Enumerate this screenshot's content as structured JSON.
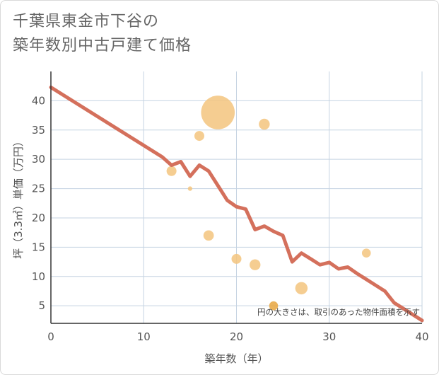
{
  "title_lines": [
    "千葉県東金市下谷の",
    "築年数別中古戸建て価格"
  ],
  "chart_data": {
    "type": "scatter",
    "xlabel": "築年数（年）",
    "ylabel": "坪（3.3㎡）単価（万円）",
    "xlim": [
      0,
      40
    ],
    "ylim": [
      2,
      45
    ],
    "x_ticks": [
      0,
      10,
      20,
      30,
      40
    ],
    "y_ticks": [
      5,
      10,
      15,
      20,
      25,
      30,
      35,
      40
    ],
    "grid": true,
    "note": "円の大きさは、取引のあった物件面積を示す",
    "points": [
      {
        "x": 13,
        "y": 28,
        "size": 1.0
      },
      {
        "x": 15,
        "y": 25,
        "size": 0.45
      },
      {
        "x": 16,
        "y": 34,
        "size": 1.0
      },
      {
        "x": 17,
        "y": 17,
        "size": 1.05
      },
      {
        "x": 18,
        "y": 38,
        "size": 3.4
      },
      {
        "x": 20,
        "y": 13,
        "size": 1.0
      },
      {
        "x": 22,
        "y": 12,
        "size": 1.1
      },
      {
        "x": 23,
        "y": 36,
        "size": 1.1
      },
      {
        "x": 24,
        "y": 5,
        "size": 0.9
      },
      {
        "x": 27,
        "y": 8,
        "size": 1.25
      },
      {
        "x": 34,
        "y": 14,
        "size": 0.9
      }
    ],
    "trend": {
      "x": [
        0,
        12,
        13,
        14,
        15,
        16,
        17,
        18,
        19,
        20,
        21,
        22,
        23,
        24,
        25,
        26,
        27,
        28,
        29,
        30,
        31,
        32,
        33,
        34,
        35,
        36,
        37,
        38,
        39,
        40
      ],
      "y": [
        42.3,
        30.4,
        29.0,
        29.6,
        27.1,
        29.0,
        28.0,
        25.5,
        23.0,
        21.9,
        21.5,
        18.0,
        18.6,
        17.7,
        17.0,
        12.5,
        14.0,
        13.0,
        12.0,
        12.4,
        11.3,
        11.6,
        10.5,
        9.5,
        8.5,
        7.5,
        5.5,
        4.5,
        3.5,
        2.5
      ]
    },
    "colors": {
      "bubble": "#f3c47e",
      "bubble_dark": "#e8a63f",
      "trend": "#d4705c",
      "grid": "#c5d3e2",
      "axis": "#333333"
    }
  }
}
